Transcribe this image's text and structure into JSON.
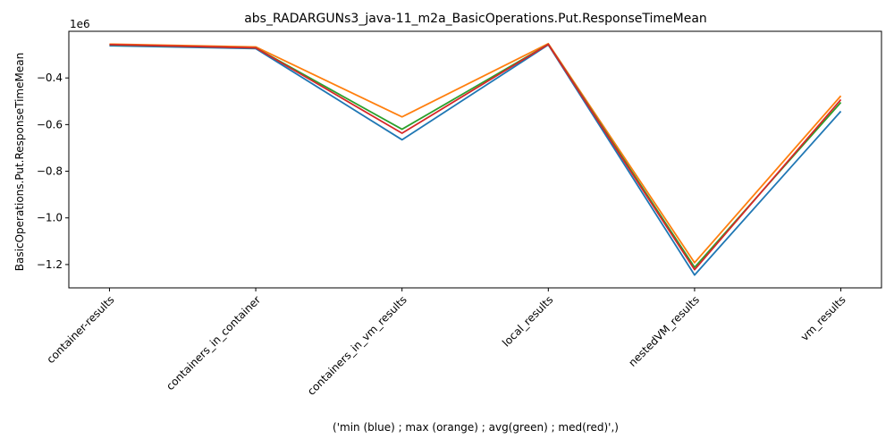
{
  "chart_data": {
    "type": "line",
    "title": "abs_RADARGUNs3_java-11_m2a_BasicOperations.Put.ResponseTimeMean",
    "xlabel": "('min (blue) ; max (orange) ; avg(green) ; med(red)',)",
    "ylabel": "BasicOperations.Put.ResponseTimeMean",
    "offset_label": "1e6",
    "categories": [
      "container-results",
      "containers_in_container",
      "containers_in_vm_results",
      "local_results",
      "nestedVM_results",
      "vm_results"
    ],
    "ylim": [
      -1.3,
      -0.2
    ],
    "yticks": [
      -1.2,
      -1.0,
      -0.8,
      -0.6,
      -0.4
    ],
    "ytick_labels": [
      "−1.2",
      "−1.0",
      "−0.8",
      "−0.6",
      "−0.4"
    ],
    "grid": false,
    "series": [
      {
        "color": "#1f77b4",
        "values": [
          -0.262,
          -0.274,
          -0.665,
          -0.258,
          -1.245,
          -0.543
        ]
      },
      {
        "color": "#ff7f0e",
        "values": [
          -0.255,
          -0.267,
          -0.567,
          -0.253,
          -1.192,
          -0.477
        ]
      },
      {
        "color": "#2ca02c",
        "values": [
          -0.258,
          -0.271,
          -0.62,
          -0.256,
          -1.212,
          -0.505
        ]
      },
      {
        "color": "#d62728",
        "values": [
          -0.257,
          -0.271,
          -0.637,
          -0.256,
          -1.222,
          -0.493
        ]
      }
    ]
  }
}
